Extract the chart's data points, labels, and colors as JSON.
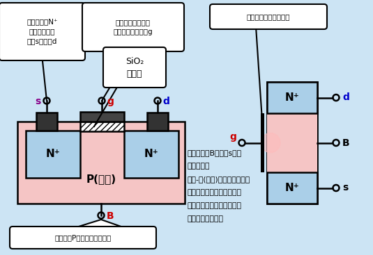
{
  "bg_color": "#cce4f4",
  "n_plus_color": "#aacfe8",
  "p_sub_color": "#f5c5c5",
  "contact_color": "#333333",
  "callout_bg": "#ffffff",
  "black": "#000000",
  "red": "#cc0000",
  "blue": "#0000cc",
  "purple": "#880088",
  "callout1_line1": "两个高掺杂N",
  "callout1_line2": "区，分别引出",
  "callout1_line3": "源极s和漏极d",
  "callout2_line1": "绝缘层上制作一层",
  "callout2_line2": "金属铝，引出栅极g",
  "callout3_line1": "SiO₂",
  "callout3_line2": "绝缘层",
  "callout4": "栅极和袆底间形成电容",
  "callout5": "低掺杂的P型半导体作为袆底",
  "p_label": "P(袆底)",
  "rhs_line1": "通常将袆底B与源极s接在",
  "rhs_line2": "一起使用。",
  "rhs_line3": "当栅-源(袆底)间电压变化时，",
  "rhs_line4": "将改变袆底靠近绝缘层附处",
  "rhs_line5": "感应电荷的多少，从而控制",
  "rhs_line6": "漏极电流的大小。"
}
